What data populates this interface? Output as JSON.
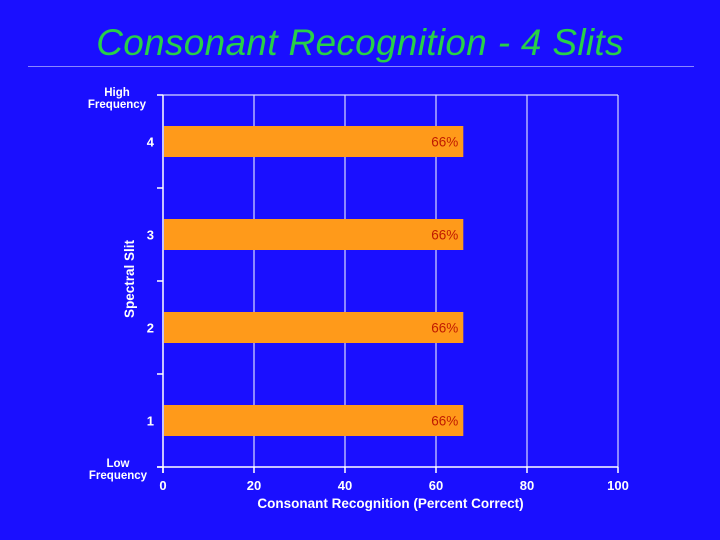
{
  "slide": {
    "title": "Consonant Recognition - 4 Slits"
  },
  "colors": {
    "background": "#1a0fff",
    "title": "#28d048",
    "bar": "#ff9a1a",
    "bar_label": "#c01a00",
    "axis": "#ffffff"
  },
  "chart_data": {
    "type": "bar",
    "orientation": "horizontal",
    "title": "",
    "xlabel": "Consonant Recognition (Percent Correct)",
    "ylabel": "Spectral Slit",
    "categories": [
      "4",
      "3",
      "2",
      "1"
    ],
    "values": [
      66,
      66,
      66,
      66
    ],
    "data_labels": [
      "66%",
      "66%",
      "66%",
      "66%"
    ],
    "xlim": [
      0,
      100
    ],
    "x_ticks": [
      0,
      20,
      40,
      60,
      80,
      100
    ],
    "grid": true,
    "y_end_labels": {
      "top": [
        "High",
        "Frequency"
      ],
      "bottom": [
        "Low",
        "Frequency"
      ]
    }
  }
}
